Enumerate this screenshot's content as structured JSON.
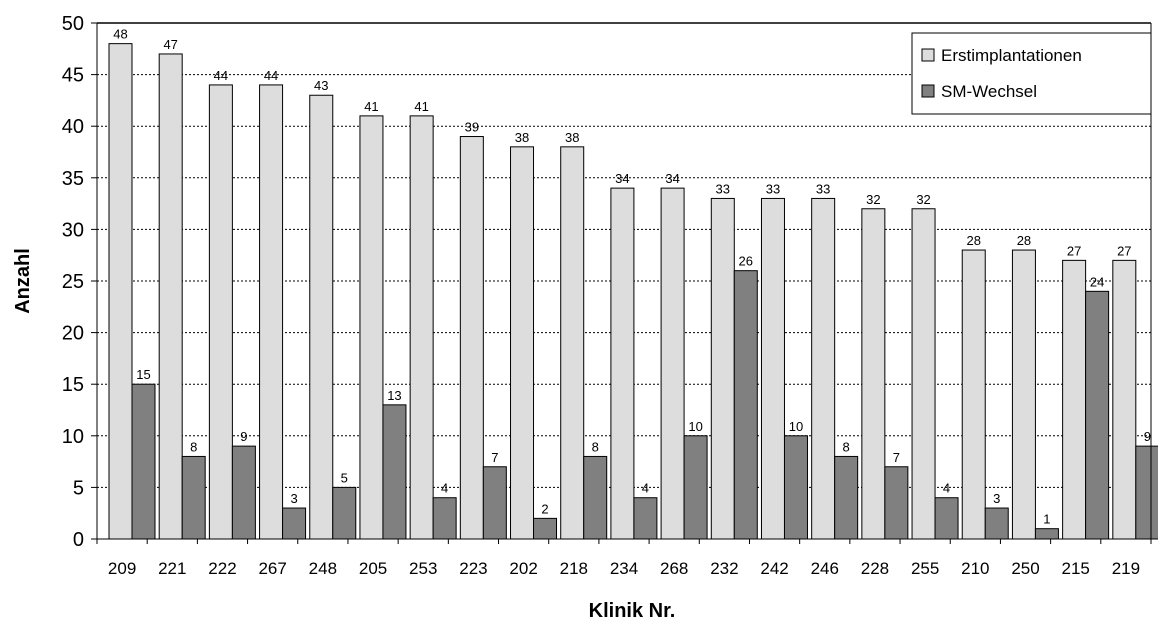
{
  "chart_data": {
    "type": "bar",
    "title": "",
    "xlabel": "Klinik Nr.",
    "ylabel": "Anzahl",
    "ylim": [
      0,
      50
    ],
    "yticks": [
      0,
      5,
      10,
      15,
      20,
      25,
      30,
      35,
      40,
      45,
      50
    ],
    "grid": "horizontal dashed",
    "legend_position": "top-right",
    "categories": [
      "209",
      "221",
      "222",
      "267",
      "248",
      "205",
      "253",
      "223",
      "202",
      "218",
      "234",
      "268",
      "232",
      "242",
      "246",
      "228",
      "255",
      "210",
      "250",
      "215",
      "219"
    ],
    "series": [
      {
        "name": "Erstimplantationen",
        "color": "#dddddd",
        "values": [
          48,
          47,
          44,
          44,
          43,
          41,
          41,
          39,
          38,
          38,
          34,
          34,
          33,
          33,
          33,
          32,
          32,
          28,
          28,
          27,
          27
        ]
      },
      {
        "name": "SM-Wechsel",
        "color": "#808080",
        "values": [
          15,
          8,
          9,
          3,
          5,
          13,
          4,
          7,
          2,
          8,
          4,
          10,
          26,
          10,
          8,
          7,
          4,
          3,
          1,
          24,
          9
        ]
      }
    ]
  }
}
